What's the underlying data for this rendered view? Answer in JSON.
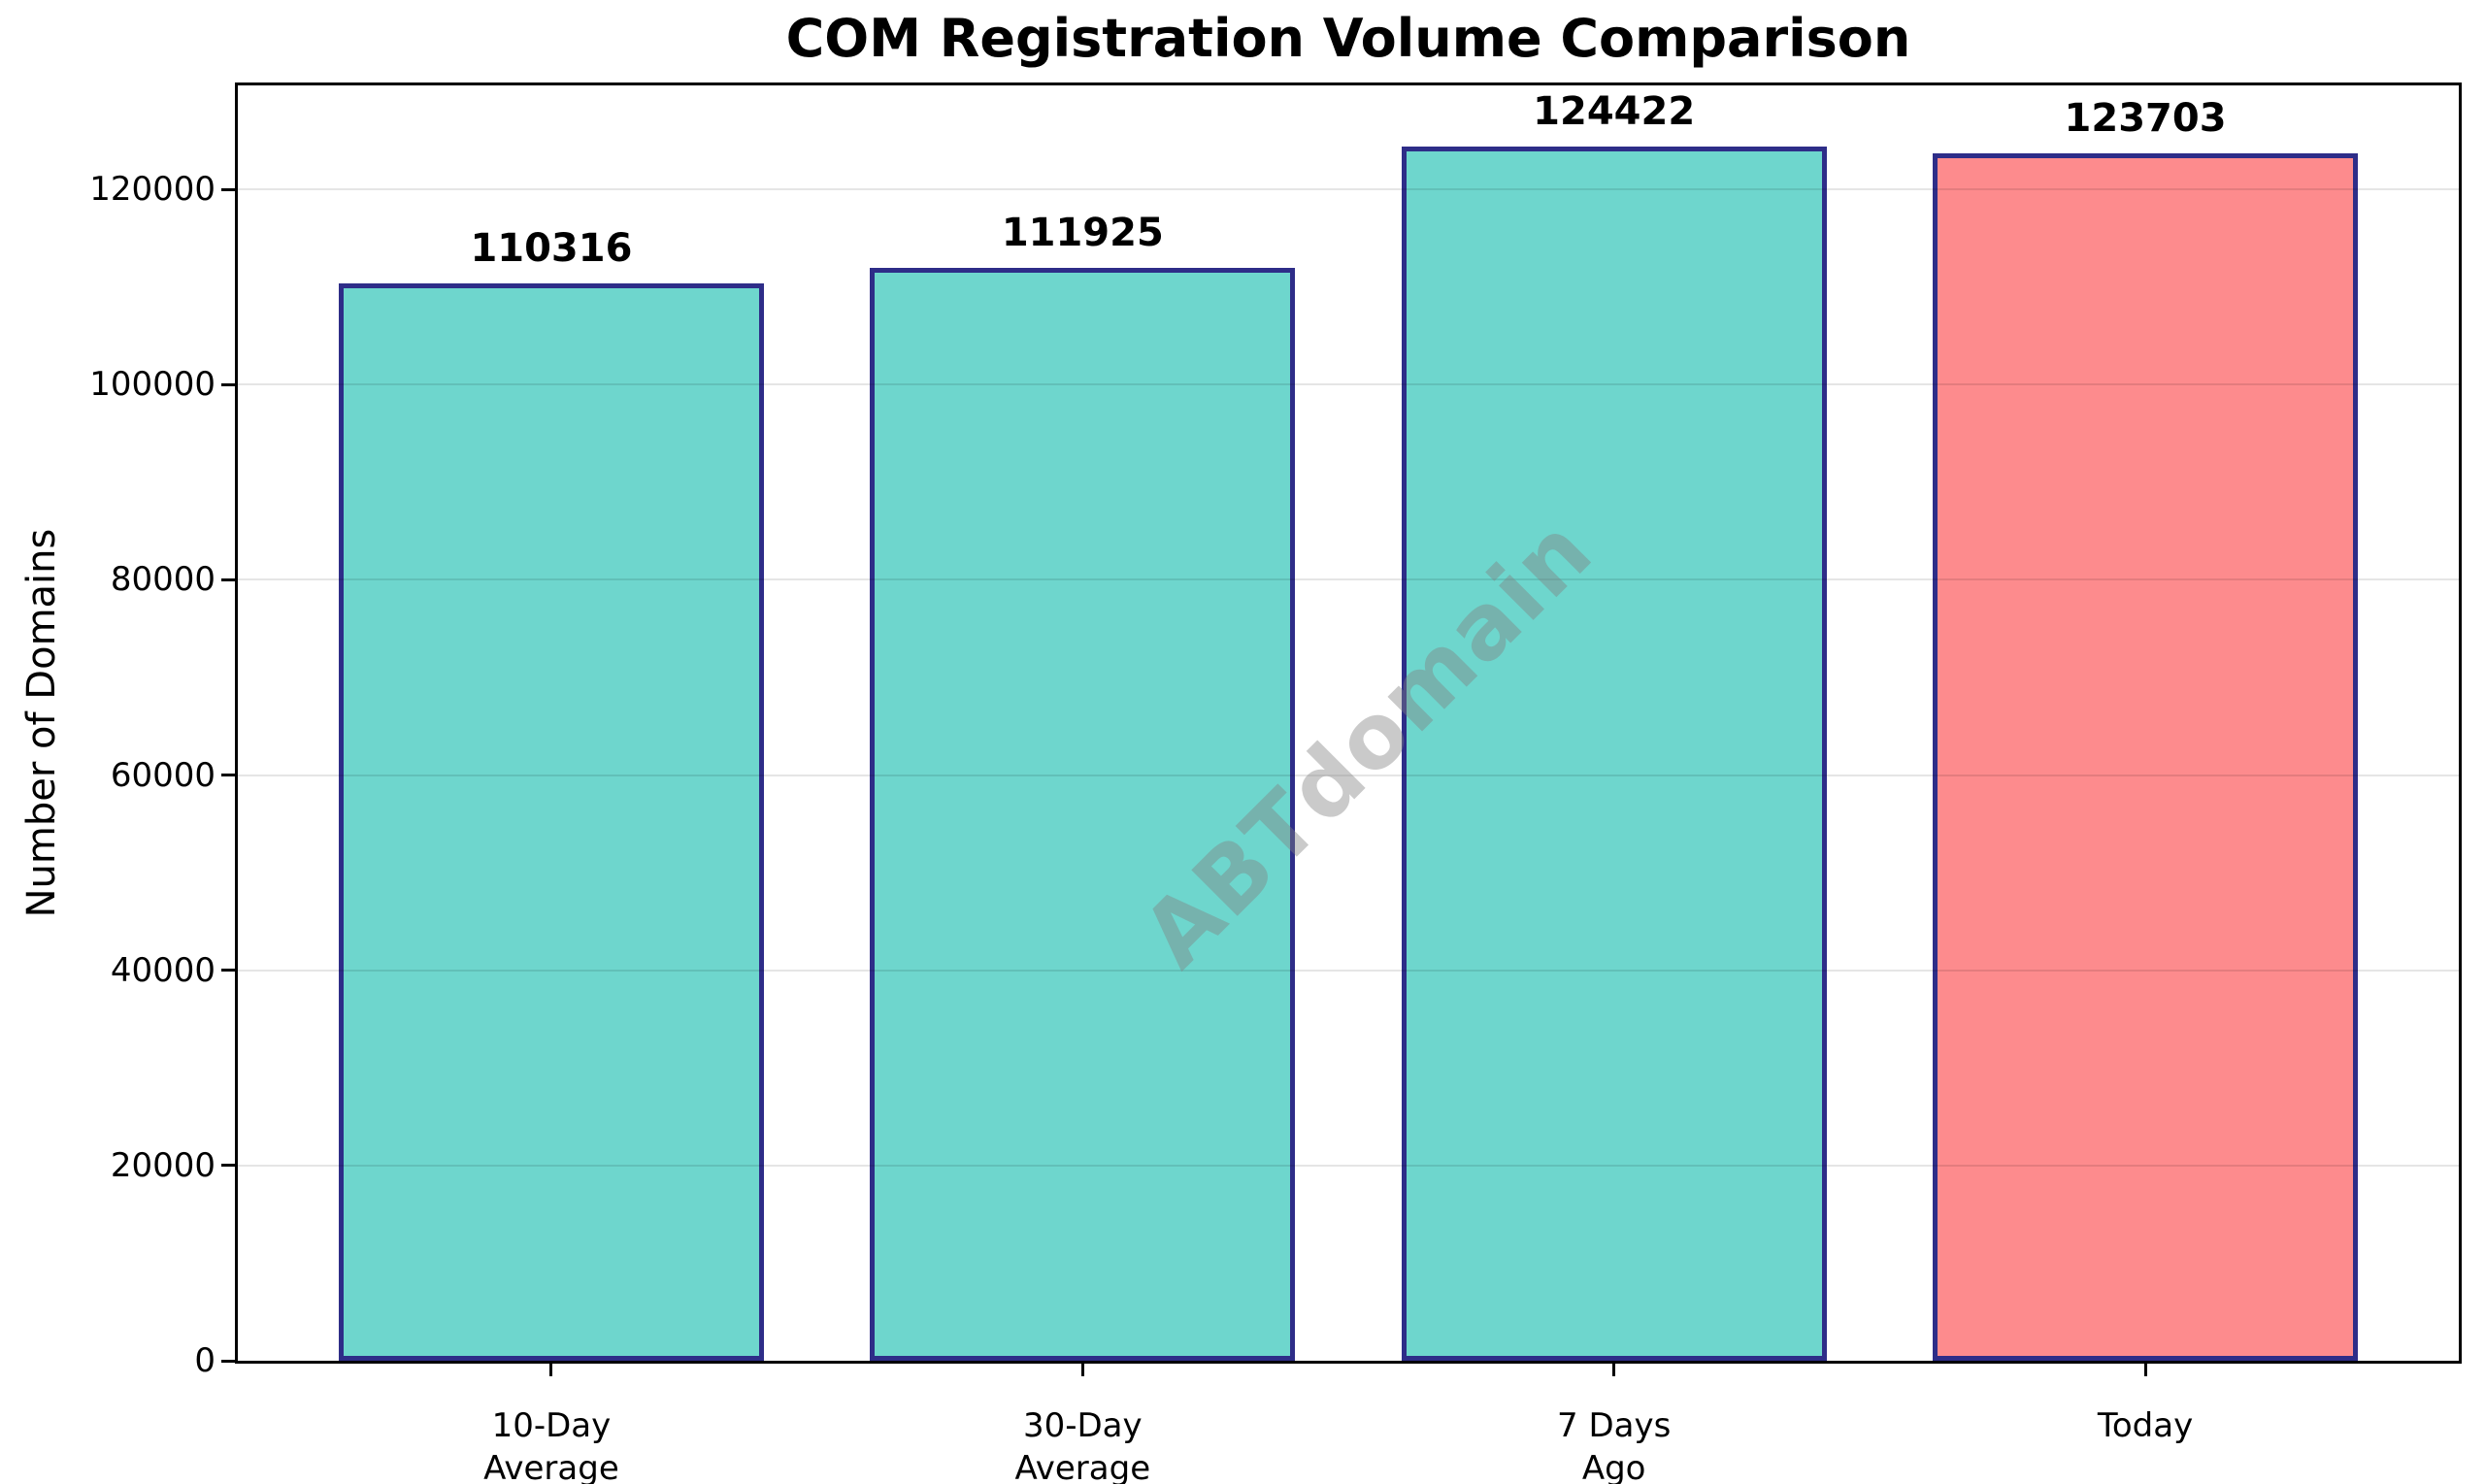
{
  "figure": {
    "background": "#ffffff"
  },
  "chart_data": {
    "type": "bar",
    "title": "COM Registration Volume Comparison",
    "xlabel": "",
    "ylabel": "Number of Domains",
    "watermark": "ABTdomain",
    "categories": [
      "10-Day Average",
      "30-Day Average",
      "7 Days Ago",
      "Today"
    ],
    "category_lines": [
      [
        "10-Day",
        "Average"
      ],
      [
        "30-Day",
        "Average"
      ],
      [
        "7 Days",
        "Ago"
      ],
      [
        "Today"
      ]
    ],
    "values": [
      110316,
      111925,
      124422,
      123703
    ],
    "value_labels": [
      "110316",
      "111925",
      "124422",
      "123703"
    ],
    "bar_colors": [
      "#6ED6CD",
      "#6ED6CD",
      "#6ED6CD",
      "#FD8B8D"
    ],
    "bar_edge_color": "#2E2D88",
    "bar_width_fraction": 0.8,
    "ytick_values": [
      0,
      20000,
      40000,
      60000,
      80000,
      100000,
      120000
    ],
    "ytick_labels": [
      "0",
      "20000",
      "40000",
      "60000",
      "80000",
      "100000",
      "120000"
    ],
    "ylim": [
      0,
      130643
    ],
    "grid": "horizontal",
    "grid_color_overlay": "rgba(0,0,0,0.10)",
    "watermark_color": "rgba(128,128,128,0.42)",
    "spine_color": "#000000",
    "legend": "none"
  }
}
